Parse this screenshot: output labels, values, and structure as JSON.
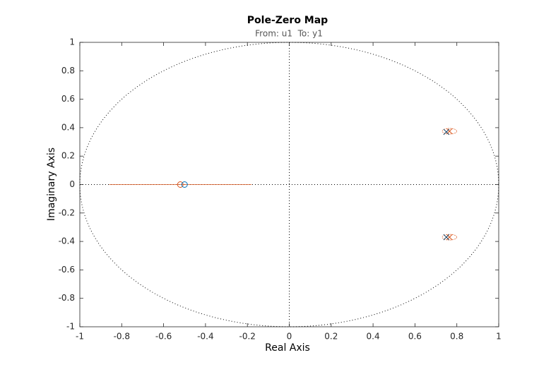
{
  "chart_data": {
    "type": "pole-zero",
    "title": "Pole-Zero Map",
    "subtitle": "From: u1  To: y1",
    "x_label": "Real Axis",
    "y_label": "Imaginary Axis",
    "xlim": [
      -1,
      1
    ],
    "ylim": [
      -1,
      1
    ],
    "xticks": [
      -1,
      -0.8,
      -0.6,
      -0.4,
      -0.2,
      0,
      0.2,
      0.4,
      0.6,
      0.8,
      1
    ],
    "yticks": [
      -1,
      -0.8,
      -0.6,
      -0.4,
      -0.2,
      0,
      0.2,
      0.4,
      0.6,
      0.8,
      1
    ],
    "unit_circle": true,
    "zero_lines": true,
    "series": [
      {
        "color": "#d95319",
        "marker": "x",
        "x": [
          0.765,
          0.765
        ],
        "values": [
          0.375,
          -0.37
        ],
        "x_err": [
          0.035,
          0.035
        ],
        "y_err": [
          0.02,
          0.02
        ]
      },
      {
        "color": "#d95319",
        "marker": "o",
        "x": [
          -0.52
        ],
        "values": [
          0
        ],
        "x_err": [
          0.34
        ],
        "y_err": [
          0
        ]
      },
      {
        "color": "#0e3b5c",
        "marker": "x",
        "x": [
          0.75,
          0.75
        ],
        "values": [
          0.37,
          -0.37
        ]
      },
      {
        "color": "#0072bd",
        "marker": "o",
        "x": [
          -0.5
        ],
        "values": [
          0
        ]
      }
    ]
  }
}
